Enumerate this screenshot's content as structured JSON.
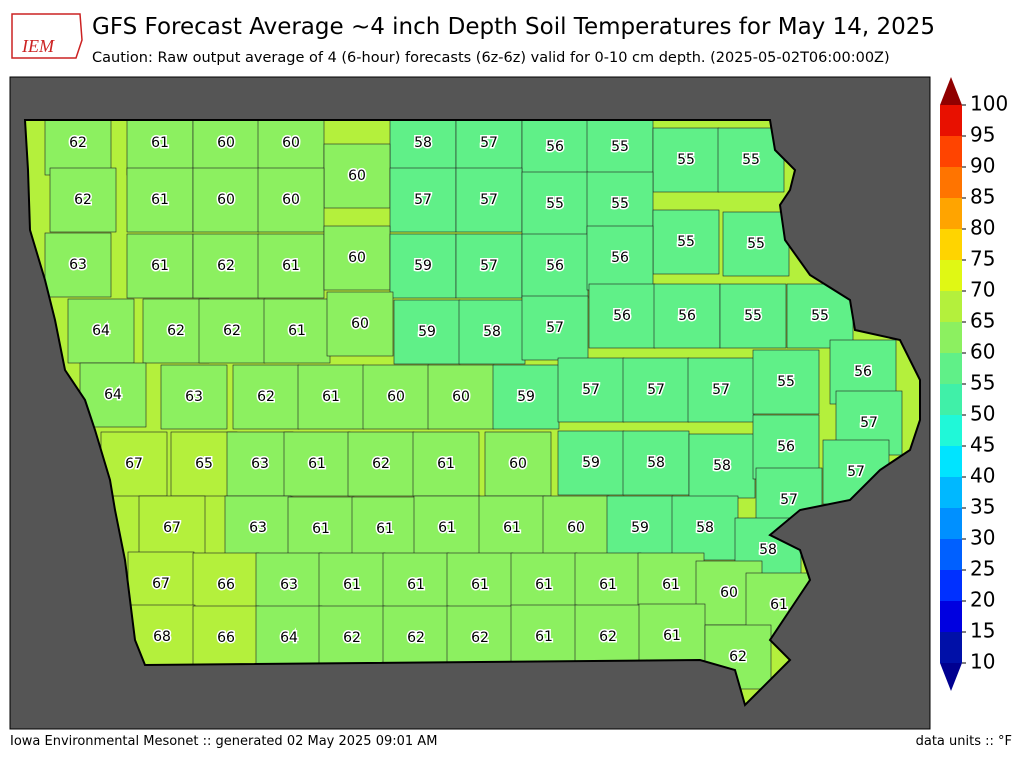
{
  "header": {
    "logo_text": "IEM",
    "title": "GFS Forecast Average ~4 inch Depth Soil Temperatures for May 14, 2025",
    "subtitle": "Caution: Raw output average of 4 (6-hour) forecasts (6z-6z) valid for 0-10 cm depth. (2025-05-02T06:00:00Z)"
  },
  "map": {
    "county_values": [
      62,
      61,
      60,
      60,
      58,
      57,
      56,
      55,
      55,
      55,
      60,
      62,
      61,
      60,
      60,
      57,
      57,
      55,
      55,
      55,
      55,
      63,
      61,
      62,
      61,
      60,
      59,
      57,
      56,
      56,
      64,
      62,
      62,
      61,
      60,
      59,
      58,
      57,
      56,
      56,
      55,
      55,
      64,
      63,
      62,
      61,
      60,
      60,
      59,
      57,
      57,
      57,
      55,
      56,
      57,
      67,
      65,
      63,
      61,
      62,
      61,
      60,
      59,
      58,
      58,
      56,
      57,
      67,
      63,
      61,
      61,
      61,
      61,
      60,
      59,
      58,
      57,
      58,
      67,
      66,
      63,
      61,
      61,
      61,
      61,
      61,
      61,
      60,
      61,
      68,
      66,
      64,
      62,
      62,
      62,
      61,
      62,
      61,
      62
    ],
    "colorbar": {
      "ticks": [
        10,
        15,
        20,
        25,
        30,
        35,
        40,
        45,
        50,
        55,
        60,
        65,
        70,
        75,
        80,
        85,
        90,
        95,
        100
      ],
      "colors": [
        "#0010a8",
        "#0000e0",
        "#0030ff",
        "#0060ff",
        "#0090ff",
        "#00b8ff",
        "#00e4ff",
        "#20f8d8",
        "#40f0a8",
        "#60f088",
        "#8cf060",
        "#b4f03c",
        "#e0f814",
        "#ffd400",
        "#ffa400",
        "#ff7400",
        "#ff4400",
        "#e81000"
      ],
      "under_color": "#000090",
      "over_color": "#900000"
    }
  },
  "footer": {
    "source": "Iowa Environmental Mesonet :: generated 02 May 2025 09:01 AM",
    "units": "data units :: °F"
  }
}
